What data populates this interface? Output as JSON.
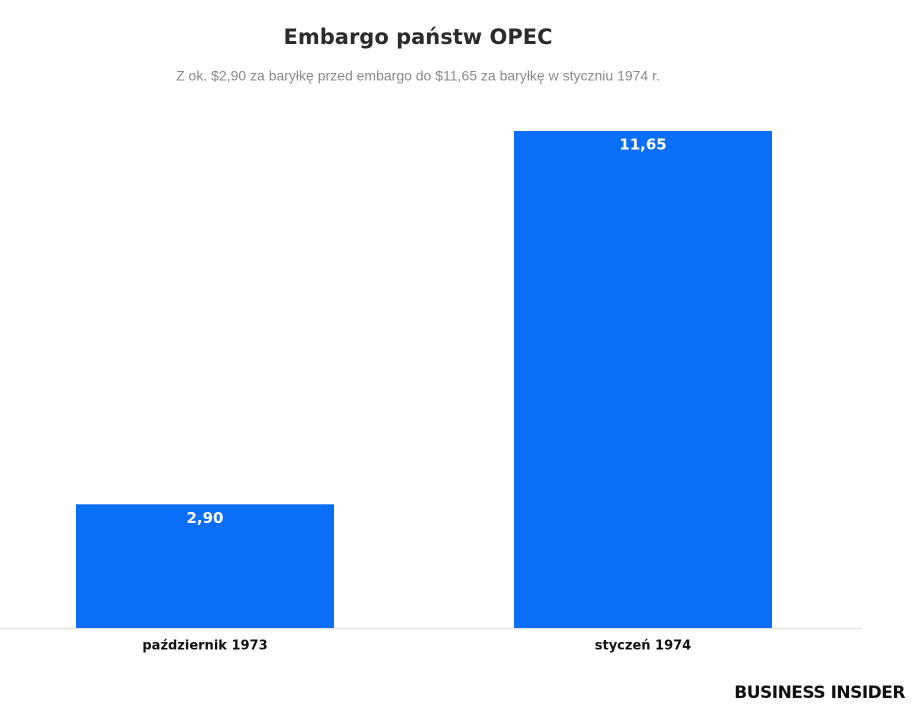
{
  "chart_data": {
    "type": "bar",
    "title": "Embargo państw OPEC",
    "subtitle": "Z ok. $2,90 za baryłkę przed embargo do $11,65 za baryłkę w styczniu 1974 r.",
    "categories": [
      "październik 1973",
      "styczeń 1974"
    ],
    "values": [
      2.9,
      11.65
    ],
    "value_labels": [
      "2,90",
      "11,65"
    ],
    "color": "#0b6ef6",
    "logo": "BUSINESS INSIDER"
  }
}
